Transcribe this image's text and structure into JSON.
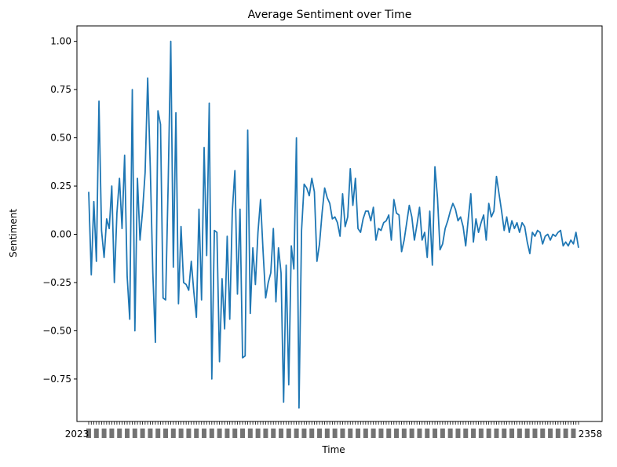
{
  "chart_data": {
    "type": "line",
    "title": "Average Sentiment over Time",
    "xlabel": "Time",
    "ylabel": "Sentiment",
    "ylim": [
      -0.97,
      1.08
    ],
    "yticks": [
      -0.75,
      -0.5,
      -0.25,
      0.0,
      0.25,
      0.5,
      0.75,
      1.0
    ],
    "ytick_labels": [
      "−0.75",
      "−0.50",
      "−0.25",
      "0.00",
      "0.25",
      "0.50",
      "0.75",
      "1.00"
    ],
    "xtick_left_label": "2023",
    "xtick_right_label": "2358",
    "grid": false,
    "legend": "none",
    "line_color": "#1f77b4",
    "series": [
      {
        "values": [
          0.22,
          -0.21,
          0.17,
          -0.14,
          0.69,
          0.02,
          -0.12,
          0.08,
          0.03,
          0.25,
          -0.25,
          0.11,
          0.29,
          0.03,
          0.41,
          -0.22,
          -0.44,
          0.75,
          -0.5,
          0.29,
          -0.03,
          0.12,
          0.32,
          0.81,
          0.35,
          -0.2,
          -0.56,
          0.64,
          0.57,
          -0.33,
          -0.34,
          0.27,
          1.0,
          -0.17,
          0.63,
          -0.36,
          0.04,
          -0.25,
          -0.26,
          -0.29,
          -0.14,
          -0.3,
          -0.43,
          0.13,
          -0.34,
          0.45,
          -0.11,
          0.68,
          -0.75,
          0.02,
          0.01,
          -0.66,
          -0.23,
          -0.49,
          -0.01,
          -0.44,
          0.12,
          0.33,
          -0.31,
          0.13,
          -0.64,
          -0.63,
          0.54,
          -0.41,
          -0.07,
          -0.26,
          0.01,
          0.18,
          -0.09,
          -0.33,
          -0.25,
          -0.2,
          0.03,
          -0.35,
          -0.07,
          -0.2,
          -0.87,
          -0.16,
          -0.78,
          -0.06,
          -0.18,
          0.5,
          -0.9,
          0.02,
          0.26,
          0.24,
          0.2,
          0.29,
          0.22,
          -0.14,
          -0.05,
          0.11,
          0.24,
          0.19,
          0.16,
          0.08,
          0.09,
          0.06,
          -0.01,
          0.21,
          0.04,
          0.09,
          0.34,
          0.15,
          0.29,
          0.03,
          0.01,
          0.08,
          0.12,
          0.12,
          0.07,
          0.14,
          -0.03,
          0.03,
          0.02,
          0.06,
          0.07,
          0.1,
          -0.03,
          0.18,
          0.11,
          0.1,
          -0.09,
          -0.03,
          0.06,
          0.15,
          0.09,
          -0.03,
          0.05,
          0.14,
          -0.03,
          0.01,
          -0.12,
          0.12,
          -0.16,
          0.35,
          0.19,
          -0.08,
          -0.05,
          0.03,
          0.07,
          0.12,
          0.16,
          0.13,
          0.07,
          0.09,
          0.04,
          -0.06,
          0.08,
          0.21,
          -0.04,
          0.08,
          0.01,
          0.06,
          0.1,
          -0.03,
          0.16,
          0.09,
          0.12,
          0.3,
          0.21,
          0.12,
          0.02,
          0.09,
          0.01,
          0.07,
          0.03,
          0.06,
          0.01,
          0.06,
          0.04,
          -0.04,
          -0.1,
          0.01,
          -0.01,
          0.02,
          0.01,
          -0.05,
          -0.01,
          0.0,
          -0.03,
          0.0,
          -0.01,
          0.01,
          0.02,
          -0.06,
          -0.04,
          -0.06,
          -0.03,
          -0.05,
          0.01,
          -0.07
        ]
      }
    ]
  }
}
